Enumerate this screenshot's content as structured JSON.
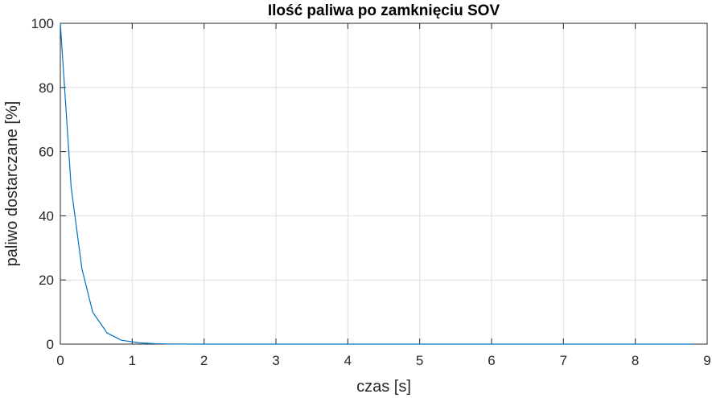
{
  "chart_data": {
    "type": "line",
    "title": "Ilość paliwa po zamknięciu SOV",
    "xlabel": "czas [s]",
    "ylabel": "paliwo dostarczane [%]",
    "xlim": [
      0,
      9
    ],
    "ylim": [
      0,
      100
    ],
    "xticks": [
      0,
      1,
      2,
      3,
      4,
      5,
      6,
      7,
      8,
      9
    ],
    "yticks": [
      0,
      20,
      40,
      60,
      80,
      100
    ],
    "grid": true,
    "line_color": "#0072BD",
    "series": [
      {
        "x": [
          0,
          0.15,
          0.3,
          0.45,
          0.65,
          0.85,
          1.1,
          1.3,
          1.5,
          2.0,
          3.0,
          4.0,
          5.0,
          6.0,
          7.0,
          8.0,
          8.8
        ],
        "y": [
          100,
          49,
          23.5,
          10,
          3.5,
          1.2,
          0.4,
          0.15,
          0.05,
          0,
          0,
          0,
          0,
          0,
          0,
          0,
          0
        ]
      }
    ]
  }
}
